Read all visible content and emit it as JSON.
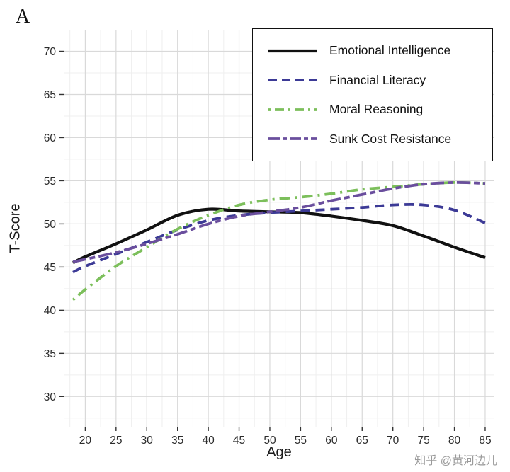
{
  "panel_label": "A",
  "watermark": "知乎 @黄河边儿",
  "chart_data": {
    "type": "line",
    "title": "",
    "xlabel": "Age",
    "ylabel": "T-Score",
    "xlim": [
      16.5,
      86.5
    ],
    "ylim": [
      26.5,
      72.5
    ],
    "x_ticks": [
      20,
      25,
      30,
      35,
      40,
      45,
      50,
      55,
      60,
      65,
      70,
      75,
      80,
      85
    ],
    "y_ticks": [
      30,
      35,
      40,
      45,
      50,
      55,
      60,
      65,
      70
    ],
    "grid": "major and minor, light gray on white",
    "legend_position": "top-right inside, boxed",
    "x": [
      18,
      20,
      25,
      30,
      35,
      40,
      45,
      50,
      55,
      60,
      65,
      70,
      75,
      80,
      85
    ],
    "series": [
      {
        "name": "Emotional Intelligence",
        "color": "#111111",
        "linetype": "solid",
        "width": 4.2,
        "values": [
          45.5,
          46.2,
          47.7,
          49.3,
          51.0,
          51.7,
          51.5,
          51.4,
          51.3,
          50.9,
          50.4,
          49.8,
          48.6,
          47.3,
          46.1
        ]
      },
      {
        "name": "Financial Literacy",
        "color": "#3c3a96",
        "linetype": "dashed",
        "width": 3.8,
        "values": [
          44.4,
          45.1,
          46.5,
          47.9,
          49.3,
          50.4,
          51.0,
          51.3,
          51.5,
          51.7,
          51.9,
          52.2,
          52.2,
          51.6,
          50.1
        ]
      },
      {
        "name": "Moral Reasoning",
        "color": "#7cbf5b",
        "linetype": "dotdash",
        "width": 3.8,
        "values": [
          41.2,
          42.4,
          45.1,
          47.3,
          49.4,
          51.0,
          52.2,
          52.8,
          53.1,
          53.5,
          54.0,
          54.3,
          54.6,
          54.8,
          54.7
        ]
      },
      {
        "name": "Sunk Cost Resistance",
        "color": "#6a4e9d",
        "linetype": "twodash",
        "width": 3.8,
        "values": [
          45.6,
          45.9,
          46.7,
          47.7,
          48.8,
          50.0,
          50.9,
          51.4,
          51.9,
          52.7,
          53.4,
          54.1,
          54.6,
          54.8,
          54.7
        ]
      }
    ]
  }
}
